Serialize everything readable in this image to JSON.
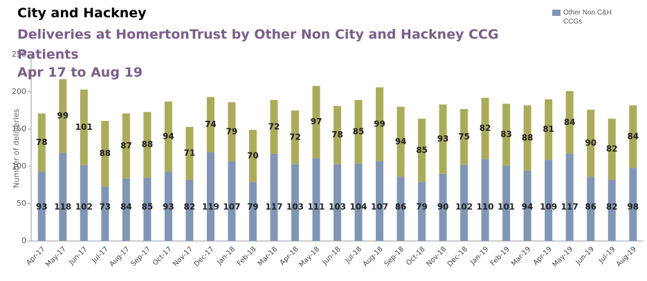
{
  "chart_data": {
    "type": "stacked_bar",
    "title": "City and Hackney",
    "subtitle": "Deliveries at HomertonTrust by Other Non City and Hackney CCG Patients",
    "period": "Apr 17 to Aug 19",
    "y_label": "Number of deliveries",
    "categories": [
      "Apr-17",
      "May-17",
      "Jun-17",
      "Jul-17",
      "Aug-17",
      "Sep-17",
      "Oct-17",
      "Nov-17",
      "Dec-17",
      "Jan-18",
      "Feb-18",
      "Mar-18",
      "Apr-18",
      "May-18",
      "Jun-18",
      "Jul-18",
      "Aug-18",
      "Sep-18",
      "Oct-18",
      "Nov-18",
      "Dec-18",
      "Jan-19",
      "Feb-19",
      "Mar-19",
      "Apr-19",
      "May-19",
      "Jun-19",
      "Jul-19",
      "Aug-19"
    ],
    "series": [
      {
        "name": "Other Non C&H CCGs",
        "color": "#8096b4",
        "values": [
          93,
          118,
          102,
          73,
          84,
          85,
          93,
          82,
          119,
          107,
          79,
          117,
          103,
          111,
          103,
          104,
          107,
          86,
          79,
          90,
          102,
          110,
          101,
          94,
          109,
          117,
          86,
          82,
          98
        ]
      },
      {
        "color": "#abab5c",
        "values": [
          78,
          99,
          101,
          88,
          87,
          88,
          94,
          71,
          74,
          79,
          70,
          72,
          72,
          97,
          78,
          85,
          99,
          94,
          85,
          93,
          75,
          82,
          83,
          88,
          81,
          84,
          90,
          82,
          84
        ]
      }
    ],
    "ylim": [
      0,
      250
    ],
    "yticks": [
      0,
      50,
      100,
      150,
      200,
      250
    ]
  }
}
